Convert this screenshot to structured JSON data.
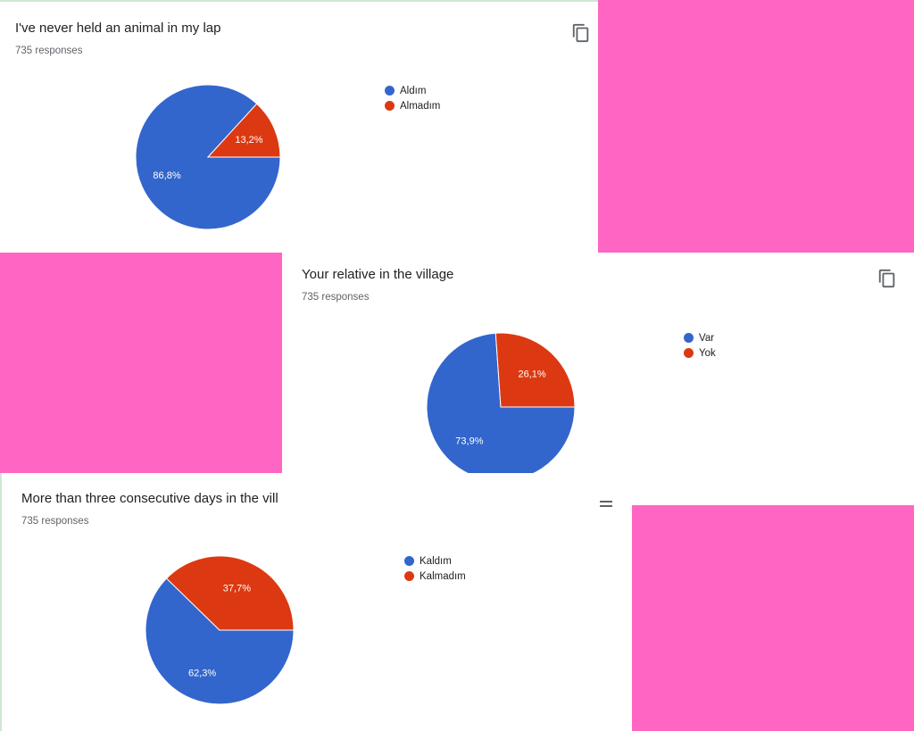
{
  "colors": {
    "blue": "#3366cc",
    "red": "#dc3912",
    "pink_background": "#ff66c4"
  },
  "copy_icon": "copy-icon",
  "cards": [
    {
      "title": "I've never held an animal in my lap",
      "responses": "735 responses"
    },
    {
      "title": "Your relative in the village",
      "responses": "735 responses"
    },
    {
      "title": "More than three consecutive days in the vill",
      "responses": "735 responses"
    }
  ],
  "chart_data": [
    {
      "type": "pie",
      "title": "I've never held an animal in my lap",
      "subtitle": "735 responses",
      "categories": [
        "Aldım",
        "Almadım"
      ],
      "values": [
        86.8,
        13.2
      ],
      "labels": [
        "86,8%",
        "13,2%"
      ],
      "colors": [
        "#3366cc",
        "#dc3912"
      ],
      "legend": "right"
    },
    {
      "type": "pie",
      "title": "Your relative in the village",
      "subtitle": "735 responses",
      "categories": [
        "Var",
        "Yok"
      ],
      "values": [
        73.9,
        26.1
      ],
      "labels": [
        "73,9%",
        "26,1%"
      ],
      "colors": [
        "#3366cc",
        "#dc3912"
      ],
      "legend": "right"
    },
    {
      "type": "pie",
      "title": "More than three consecutive days in the vill",
      "subtitle": "735 responses",
      "categories": [
        "Kaldım",
        "Kalmadım"
      ],
      "values": [
        62.3,
        37.7
      ],
      "labels": [
        "62,3%",
        "37,7%"
      ],
      "colors": [
        "#3366cc",
        "#dc3912"
      ],
      "legend": "right"
    }
  ]
}
